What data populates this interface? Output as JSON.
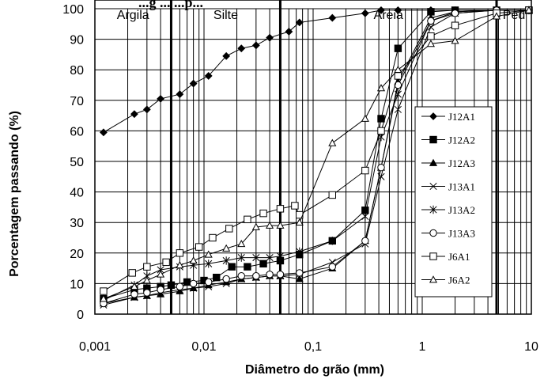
{
  "chart_data": {
    "type": "scatter",
    "title": "",
    "title_partial": "...g ... ...p...",
    "xlabel": "Diâmetro do grão (mm)",
    "ylabel": "Porcentagem passando (%)",
    "x_scale": "log",
    "xlim": [
      0.001,
      10
    ],
    "ylim": [
      0,
      100
    ],
    "grid": true,
    "legend_position": "right",
    "x_ticks": [
      "0,001",
      "0,01",
      "0,1",
      "1",
      "10"
    ],
    "y_ticks": [
      "0",
      "10",
      "20",
      "30",
      "40",
      "50",
      "60",
      "70",
      "80",
      "90",
      "100"
    ],
    "bands": [
      {
        "label": "Argila",
        "from": 0.001,
        "to": 0.005
      },
      {
        "label": "Silte",
        "from": 0.005,
        "to": 0.05
      },
      {
        "label": "Areia",
        "from": 0.05,
        "to": 4.8
      },
      {
        "label": "Ped",
        "from": 4.8,
        "to": 10
      }
    ],
    "series": [
      {
        "name": "J12A1",
        "marker": "diamond",
        "x": [
          0.0012,
          0.0023,
          0.003,
          0.004,
          0.006,
          0.008,
          0.011,
          0.016,
          0.022,
          0.03,
          0.04,
          0.06,
          0.075,
          0.15,
          0.3,
          0.42,
          0.6,
          1.2,
          2,
          4.8,
          9.5
        ],
        "y": [
          59.5,
          65.5,
          67,
          70.5,
          72,
          75.5,
          78,
          84.5,
          87,
          88,
          90.5,
          92.5,
          95.5,
          97,
          98.5,
          99.5,
          99.5,
          99.5,
          99.5,
          99.5,
          99.5
        ]
      },
      {
        "name": "J12A2",
        "marker": "square",
        "x": [
          0.0012,
          0.0023,
          0.003,
          0.004,
          0.005,
          0.007,
          0.01,
          0.013,
          0.018,
          0.025,
          0.035,
          0.05,
          0.075,
          0.15,
          0.3,
          0.42,
          0.6,
          1.2,
          2,
          4.8,
          9.5
        ],
        "y": [
          5,
          8,
          8.5,
          9,
          9.5,
          10.5,
          11,
          12,
          15.5,
          15.5,
          16.5,
          17.5,
          19.5,
          24,
          34,
          64,
          87,
          99,
          99.5,
          99.5,
          99.5
        ]
      },
      {
        "name": "J12A3",
        "marker": "triangle-filled",
        "x": [
          0.0012,
          0.0023,
          0.003,
          0.004,
          0.006,
          0.008,
          0.011,
          0.016,
          0.022,
          0.03,
          0.04,
          0.05,
          0.075,
          0.15,
          0.3,
          0.42,
          0.6,
          1.2,
          2,
          4.8,
          9.5
        ],
        "y": [
          3.5,
          5.5,
          6,
          6.5,
          7.5,
          8.5,
          9.5,
          10.5,
          11.5,
          12,
          12.5,
          12.5,
          11.5,
          15,
          24,
          48,
          76,
          97,
          99,
          99.5,
          99.5
        ]
      },
      {
        "name": "J13A1",
        "marker": "x",
        "x": [
          0.0012,
          0.0023,
          0.003,
          0.004,
          0.006,
          0.008,
          0.011,
          0.016,
          0.022,
          0.03,
          0.04,
          0.05,
          0.075,
          0.15,
          0.3,
          0.42,
          0.6,
          1.2,
          2,
          4.8,
          9.5
        ],
        "y": [
          3,
          5.5,
          6,
          7,
          8,
          8.5,
          9,
          10,
          11.5,
          12,
          12.5,
          12.5,
          13,
          17,
          23,
          45,
          67,
          94,
          98.5,
          99.5,
          99.5
        ]
      },
      {
        "name": "J13A2",
        "marker": "star",
        "x": [
          0.0012,
          0.0023,
          0.003,
          0.004,
          0.006,
          0.008,
          0.011,
          0.016,
          0.022,
          0.03,
          0.04,
          0.05,
          0.075,
          0.15,
          0.3,
          0.42,
          0.6,
          1.2,
          2,
          4.8,
          9.5
        ],
        "y": [
          4.5,
          9.5,
          12.5,
          14.5,
          15.5,
          16,
          16.5,
          17.5,
          18.5,
          18.5,
          18.5,
          19,
          20.5,
          24,
          32,
          58,
          72,
          96,
          99,
          99.5,
          99.5
        ]
      },
      {
        "name": "J13A3",
        "marker": "circle",
        "x": [
          0.0012,
          0.0023,
          0.003,
          0.004,
          0.006,
          0.008,
          0.011,
          0.016,
          0.022,
          0.03,
          0.04,
          0.05,
          0.075,
          0.15,
          0.3,
          0.42,
          0.6,
          1.2,
          2,
          4.8,
          9.5
        ],
        "y": [
          3.5,
          6.5,
          7,
          8,
          9,
          10,
          10.5,
          11.5,
          12.5,
          12.5,
          13,
          13,
          13.5,
          15.5,
          24,
          48,
          75,
          96,
          98.5,
          99.5,
          99.5
        ]
      },
      {
        "name": "J6A1",
        "marker": "square-open",
        "x": [
          0.0012,
          0.0022,
          0.003,
          0.0045,
          0.006,
          0.009,
          0.012,
          0.017,
          0.025,
          0.035,
          0.05,
          0.068,
          0.075,
          0.15,
          0.3,
          0.42,
          0.6,
          1.2,
          2,
          4.8,
          9.5
        ],
        "y": [
          7.5,
          13.5,
          15.5,
          17,
          20,
          22,
          25,
          28,
          31,
          33,
          34.5,
          35.5,
          32.5,
          39,
          47,
          60,
          78,
          91,
          94.5,
          98.5,
          99.5
        ]
      },
      {
        "name": "J6A2",
        "marker": "triangle-open",
        "x": [
          0.0012,
          0.0023,
          0.003,
          0.004,
          0.006,
          0.008,
          0.011,
          0.016,
          0.022,
          0.03,
          0.04,
          0.05,
          0.075,
          0.15,
          0.3,
          0.42,
          0.6,
          1.2,
          2,
          4.8,
          9.5
        ],
        "y": [
          5,
          9,
          11,
          13,
          16,
          17.5,
          19.5,
          21.5,
          23,
          28.5,
          29,
          29,
          30,
          56,
          64,
          74,
          80,
          88.5,
          89.5,
          97.5,
          99.5
        ]
      }
    ]
  }
}
